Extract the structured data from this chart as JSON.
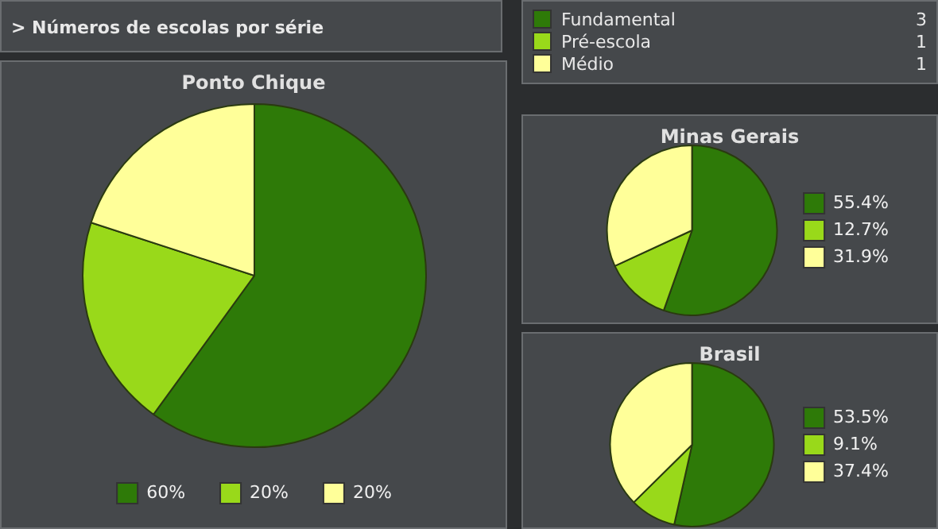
{
  "chart_data": [
    {
      "type": "other",
      "title": "> Números de escolas por série",
      "categories": [
        "Fundamental",
        "Pré-escola",
        "Médio"
      ],
      "values": [
        3,
        1,
        1
      ],
      "data_labels": true
    },
    {
      "type": "pie",
      "title": "Ponto Chique",
      "categories": [
        "60%",
        "20%",
        "20%"
      ],
      "values": [
        60,
        20,
        20
      ],
      "colors": [
        "#2e7a08",
        "#99d91a",
        "#ffff99"
      ],
      "legend": "bottom"
    },
    {
      "type": "pie",
      "title": "Minas Gerais",
      "categories": [
        "55.4%",
        "12.7%",
        "31.9%"
      ],
      "values": [
        55.4,
        12.7,
        31.9
      ],
      "colors": [
        "#2e7a08",
        "#99d91a",
        "#ffff99"
      ],
      "legend": "right"
    },
    {
      "type": "pie",
      "title": "Brasil",
      "categories": [
        "53.5%",
        "9.1%",
        "37.4%"
      ],
      "values": [
        53.5,
        9.1,
        37.4
      ],
      "colors": [
        "#2e7a08",
        "#99d91a",
        "#ffff99"
      ],
      "legend": "right"
    }
  ]
}
